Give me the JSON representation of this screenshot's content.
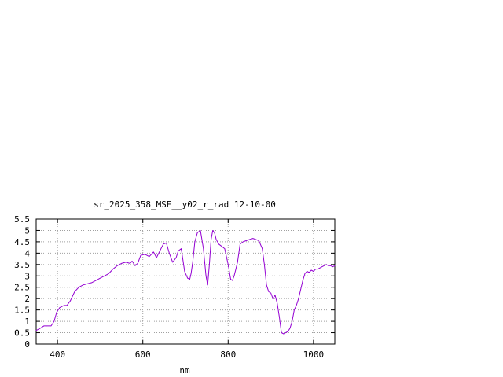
{
  "chart_data": {
    "type": "line",
    "title": "sr_2025_358_MSE__y02_r_rad 12-10-00",
    "xlabel": "nm",
    "ylabel": "",
    "xlim": [
      350,
      1050
    ],
    "ylim": [
      0,
      5.5
    ],
    "x_ticks": [
      400,
      600,
      800,
      1000
    ],
    "y_ticks": [
      0,
      0.5,
      1,
      1.5,
      2,
      2.5,
      3,
      3.5,
      4,
      4.5,
      5,
      5.5
    ],
    "x_tick_labels": [
      "400",
      "600",
      "800",
      "1000"
    ],
    "y_tick_labels": [
      "0",
      "0.5",
      "1",
      "1.5",
      "2",
      "2.5",
      "3",
      "3.5",
      "4",
      "4.5",
      "5",
      "5.5"
    ],
    "grid": true,
    "series": [
      {
        "color": "#9400d3",
        "x": [
          350,
          360,
          368,
          375,
          385,
          392,
          398,
          405,
          415,
          422,
          430,
          440,
          450,
          460,
          470,
          480,
          490,
          500,
          510,
          520,
          530,
          540,
          550,
          560,
          570,
          575,
          582,
          588,
          595,
          605,
          615,
          625,
          632,
          640,
          648,
          655,
          662,
          670,
          678,
          683,
          690,
          698,
          705,
          710,
          713,
          717,
          722,
          728,
          735,
          742,
          748,
          752,
          756,
          760,
          764,
          768,
          772,
          778,
          785,
          792,
          800,
          806,
          810,
          814,
          818,
          822,
          828,
          835,
          842,
          850,
          858,
          865,
          872,
          880,
          885,
          890,
          895,
          900,
          905,
          910,
          915,
          920,
          925,
          930,
          935,
          940,
          945,
          950,
          955,
          960,
          965,
          970,
          975,
          980,
          985,
          990,
          995,
          1000,
          1005,
          1010,
          1015,
          1020,
          1025,
          1030,
          1035,
          1040,
          1045,
          1050
        ],
        "y": [
          0.6,
          0.7,
          0.8,
          0.8,
          0.8,
          1.0,
          1.4,
          1.6,
          1.7,
          1.7,
          1.9,
          2.3,
          2.5,
          2.6,
          2.65,
          2.7,
          2.8,
          2.9,
          3.0,
          3.1,
          3.3,
          3.45,
          3.55,
          3.6,
          3.55,
          3.65,
          3.45,
          3.55,
          3.9,
          3.95,
          3.85,
          4.05,
          3.8,
          4.1,
          4.4,
          4.45,
          4.0,
          3.6,
          3.8,
          4.1,
          4.2,
          3.2,
          2.9,
          2.85,
          3.1,
          3.6,
          4.5,
          4.9,
          5.0,
          4.2,
          3.0,
          2.6,
          3.5,
          4.6,
          5.0,
          4.9,
          4.6,
          4.4,
          4.3,
          4.2,
          3.5,
          2.85,
          2.8,
          3.0,
          3.3,
          3.6,
          4.4,
          4.5,
          4.55,
          4.6,
          4.65,
          4.6,
          4.55,
          4.2,
          3.5,
          2.6,
          2.3,
          2.25,
          2.0,
          2.15,
          1.8,
          1.2,
          0.5,
          0.45,
          0.5,
          0.55,
          0.7,
          1.0,
          1.5,
          1.7,
          2.0,
          2.4,
          2.8,
          3.1,
          3.2,
          3.15,
          3.25,
          3.2,
          3.3,
          3.3,
          3.35,
          3.4,
          3.45,
          3.5,
          3.45,
          3.45,
          3.4,
          3.45
        ]
      }
    ]
  }
}
